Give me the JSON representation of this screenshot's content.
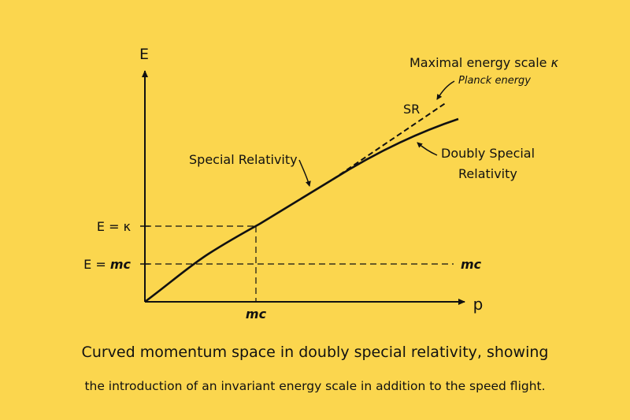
{
  "axes": {
    "y_label": "E",
    "x_label": "p"
  },
  "markers": {
    "e_kappa": "E = κ",
    "e_mc_prefix": "E = ",
    "e_mc_value": "mc",
    "mc_right": "mc",
    "mc_bottom": "mc"
  },
  "annotations": {
    "special_relativity": "Special Relativity",
    "sr": "SR",
    "max_energy_prefix": "Maximal energy scale ",
    "max_energy_symbol": "κ",
    "planck": "Planck energy",
    "dsr_line1": "Doubly Special",
    "dsr_line2": "Relativity"
  },
  "caption": {
    "line1": "Curved momentum space in doubly special relativity, showing",
    "line2": "the introduction of an invariant energy scale in addition to the speed flight."
  },
  "colors": {
    "background": "#fbd64e",
    "ink": "#111111"
  }
}
